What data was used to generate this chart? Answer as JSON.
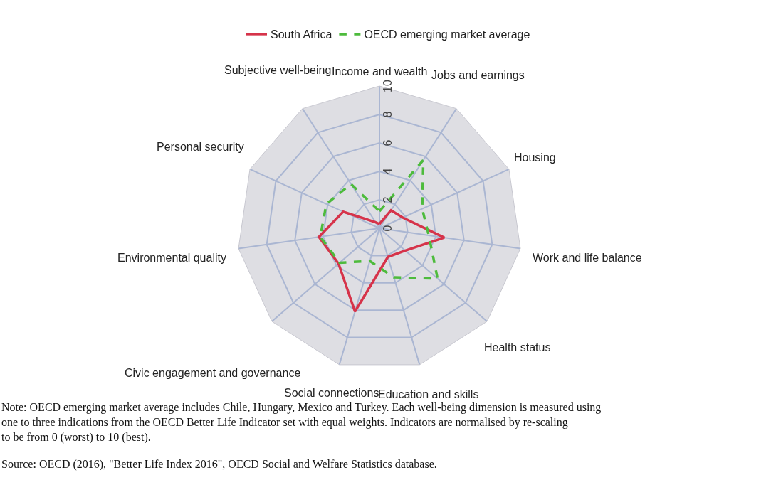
{
  "chart_data": {
    "type": "radar",
    "categories": [
      "Income and wealth",
      "Jobs and earnings",
      "Housing",
      "Work and life balance",
      "Health status",
      "Education and skills",
      "Social connections",
      "Civic engagement and governance",
      "Environmental quality",
      "Personal security",
      "Subjective well-being"
    ],
    "series": [
      {
        "name": "South Africa",
        "color": "#d6334a",
        "line_style": "solid",
        "values": [
          0.3,
          1.5,
          1.8,
          4.6,
          2.4,
          2.1,
          6.1,
          3.8,
          4.3,
          2.8,
          0.5
        ]
      },
      {
        "name": "OECD emerging market average",
        "color": "#4dbb3c",
        "line_style": "dashed",
        "values": [
          1.2,
          5.7,
          3.3,
          3.5,
          5.4,
          3.6,
          2.4,
          3.7,
          4.2,
          4.1,
          3.7
        ]
      }
    ],
    "ylim": [
      0,
      10
    ],
    "yticks": [
      0,
      2,
      4,
      6,
      8,
      10
    ],
    "grid": true,
    "legend": "top",
    "marker": "none",
    "annotations": [
      "Note: OECD emerging market average includes Chile, Hungary, Mexico and Turkey. Each well-being dimension is measured using one to three indications from the OECD Better Life Indicator set with equal weights. Indicators are normalised by re-scaling to be from 0 (worst) to 10 (best).",
      "Source: OECD (2016), \"Better Life Index 2016\", OECD Social and Welfare Statistics database."
    ]
  }
}
